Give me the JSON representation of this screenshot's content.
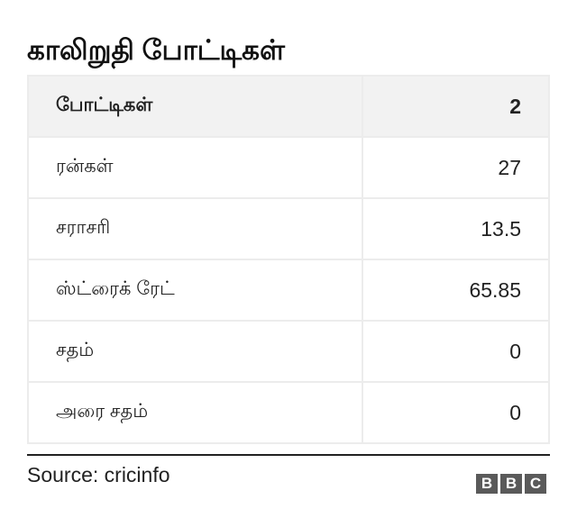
{
  "title": "காலிறுதி போட்டிகள்",
  "chart_data": {
    "type": "table",
    "header": {
      "label": "போட்டிகள்",
      "value": "2"
    },
    "rows": [
      {
        "label": "ரன்கள்",
        "value": "27"
      },
      {
        "label": "சராசரி",
        "value": "13.5"
      },
      {
        "label": "ஸ்ட்ரைக் ரேட்",
        "value": "65.85"
      },
      {
        "label": "சதம்",
        "value": "0"
      },
      {
        "label": "அரை சதம்",
        "value": "0"
      }
    ]
  },
  "source": "Source: cricinfo",
  "logo": [
    "B",
    "B",
    "C"
  ]
}
